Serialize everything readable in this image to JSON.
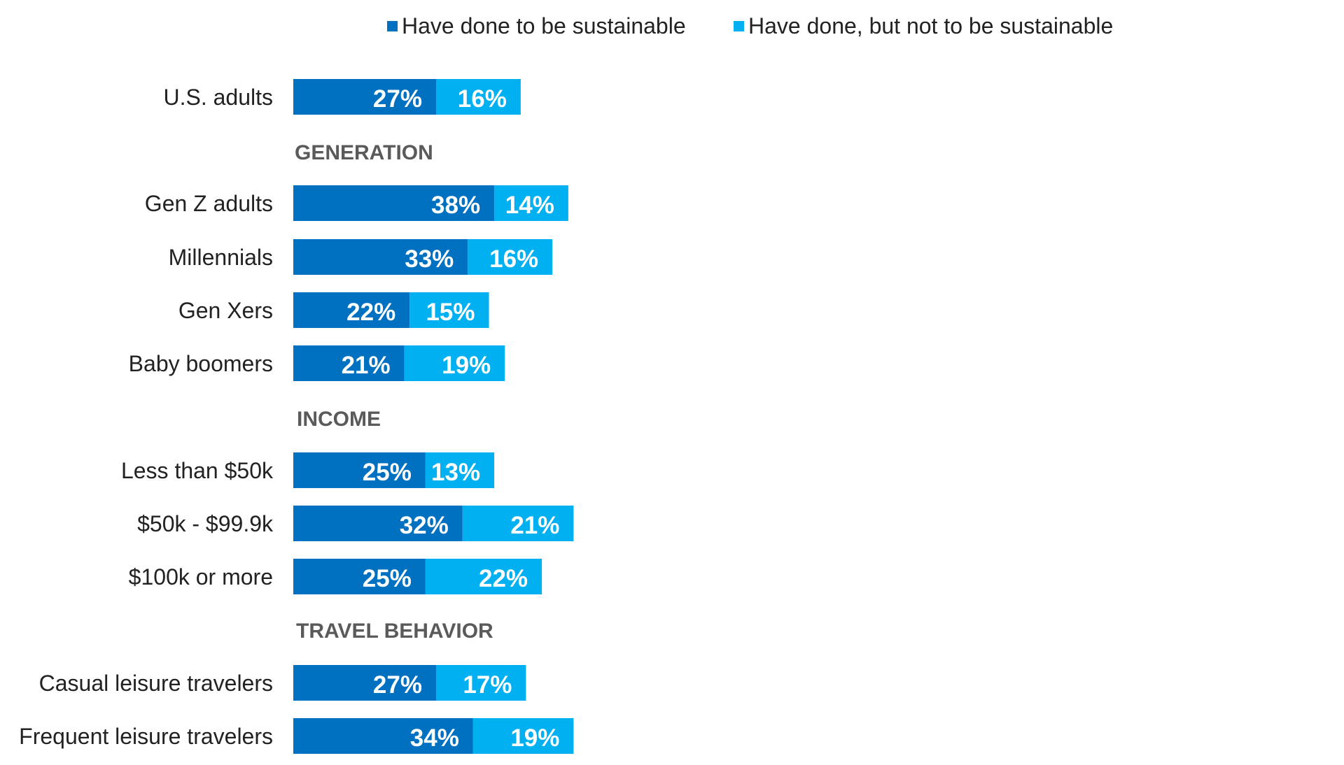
{
  "chart_data": {
    "type": "bar",
    "orientation": "horizontal",
    "stacked": true,
    "legend_position": "top",
    "colors": {
      "series_1": "#0070c0",
      "series_2": "#00b0f0",
      "section_label": "#5a5a5a"
    },
    "series": [
      {
        "name": "Have done to be sustainable"
      },
      {
        "name": "Have done, but not to be sustainable"
      }
    ],
    "sections": [
      {
        "label": "",
        "rows": [
          {
            "category": "U.S. adults",
            "values": [
              27,
              16
            ],
            "labels": [
              "27%",
              "16%"
            ]
          }
        ]
      },
      {
        "label": "GENERATION",
        "rows": [
          {
            "category": "Gen Z adults",
            "values": [
              38,
              14
            ],
            "labels": [
              "38%",
              "14%"
            ]
          },
          {
            "category": "Millennials",
            "values": [
              33,
              16
            ],
            "labels": [
              "33%",
              "16%"
            ]
          },
          {
            "category": "Gen Xers",
            "values": [
              22,
              15
            ],
            "labels": [
              "22%",
              "15%"
            ]
          },
          {
            "category": "Baby boomers",
            "values": [
              21,
              19
            ],
            "labels": [
              "21%",
              "19%"
            ]
          }
        ]
      },
      {
        "label": "INCOME",
        "rows": [
          {
            "category": "Less than $50k",
            "values": [
              25,
              13
            ],
            "labels": [
              "25%",
              "13%"
            ]
          },
          {
            "category": "$50k - $99.9k",
            "values": [
              32,
              21
            ],
            "labels": [
              "32%",
              "21%"
            ]
          },
          {
            "category": "$100k or more",
            "values": [
              25,
              22
            ],
            "labels": [
              "25%",
              "22%"
            ]
          }
        ]
      },
      {
        "label": "TRAVEL BEHAVIOR",
        "rows": [
          {
            "category": "Casual leisure travelers",
            "values": [
              27,
              17
            ],
            "labels": [
              "27%",
              "17%"
            ]
          },
          {
            "category": "Frequent leisure travelers",
            "values": [
              34,
              19
            ],
            "labels": [
              "34%",
              "19%"
            ]
          }
        ]
      }
    ]
  }
}
